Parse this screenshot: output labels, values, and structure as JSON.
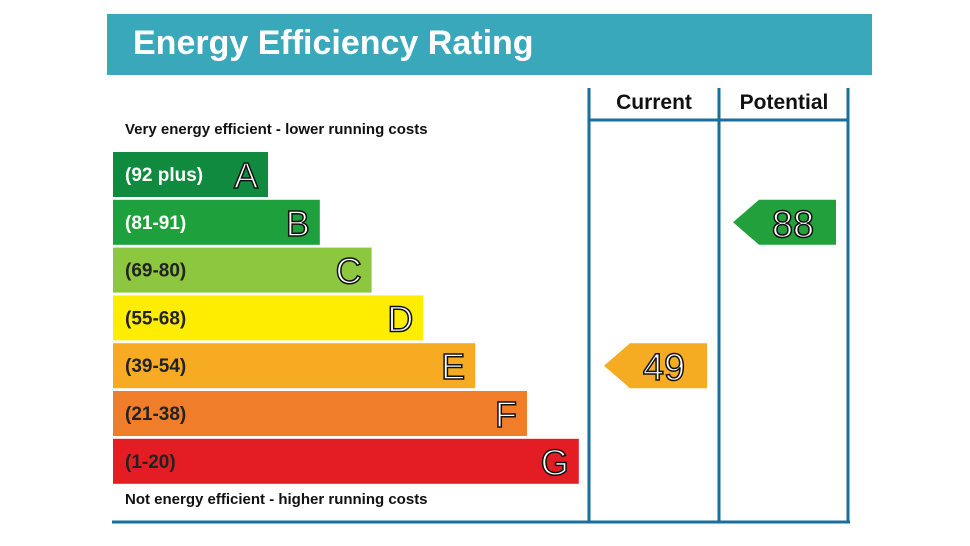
{
  "title": "Energy Efficiency Rating",
  "top_caption": "Very energy efficient - lower running costs",
  "bottom_caption": "Not energy efficient - higher running costs",
  "chart_data": {
    "type": "bar",
    "title": "Energy Efficiency Rating",
    "columns": [
      "Current",
      "Potential"
    ],
    "bands": [
      {
        "letter": "A",
        "range": "(92 plus)",
        "min": 92,
        "max": 100,
        "color": "#0f8a3e",
        "text_color": "#ffffff"
      },
      {
        "letter": "B",
        "range": "(81-91)",
        "min": 81,
        "max": 91,
        "color": "#1ea03c",
        "text_color": "#ffffff"
      },
      {
        "letter": "C",
        "range": "(69-80)",
        "min": 69,
        "max": 80,
        "color": "#8dc63f",
        "text_color": "#222222"
      },
      {
        "letter": "D",
        "range": "(55-68)",
        "min": 55,
        "max": 68,
        "color": "#ffed00",
        "text_color": "#222222"
      },
      {
        "letter": "E",
        "range": "(39-54)",
        "min": 39,
        "max": 54,
        "color": "#f7ab22",
        "text_color": "#222222"
      },
      {
        "letter": "F",
        "range": "(21-38)",
        "min": 21,
        "max": 38,
        "color": "#ef7d2a",
        "text_color": "#222222"
      },
      {
        "letter": "G",
        "range": "(1-20)",
        "min": 1,
        "max": 20,
        "color": "#e31d23",
        "text_color": "#222222"
      }
    ],
    "current": {
      "value": 49,
      "label": "49",
      "band": "E",
      "color": "#f5ab22"
    },
    "potential": {
      "value": 88,
      "label": "88",
      "band": "B",
      "color": "#22a03c"
    }
  },
  "colors": {
    "header": "#3aa8bb",
    "lines": "#1a6f9a"
  }
}
